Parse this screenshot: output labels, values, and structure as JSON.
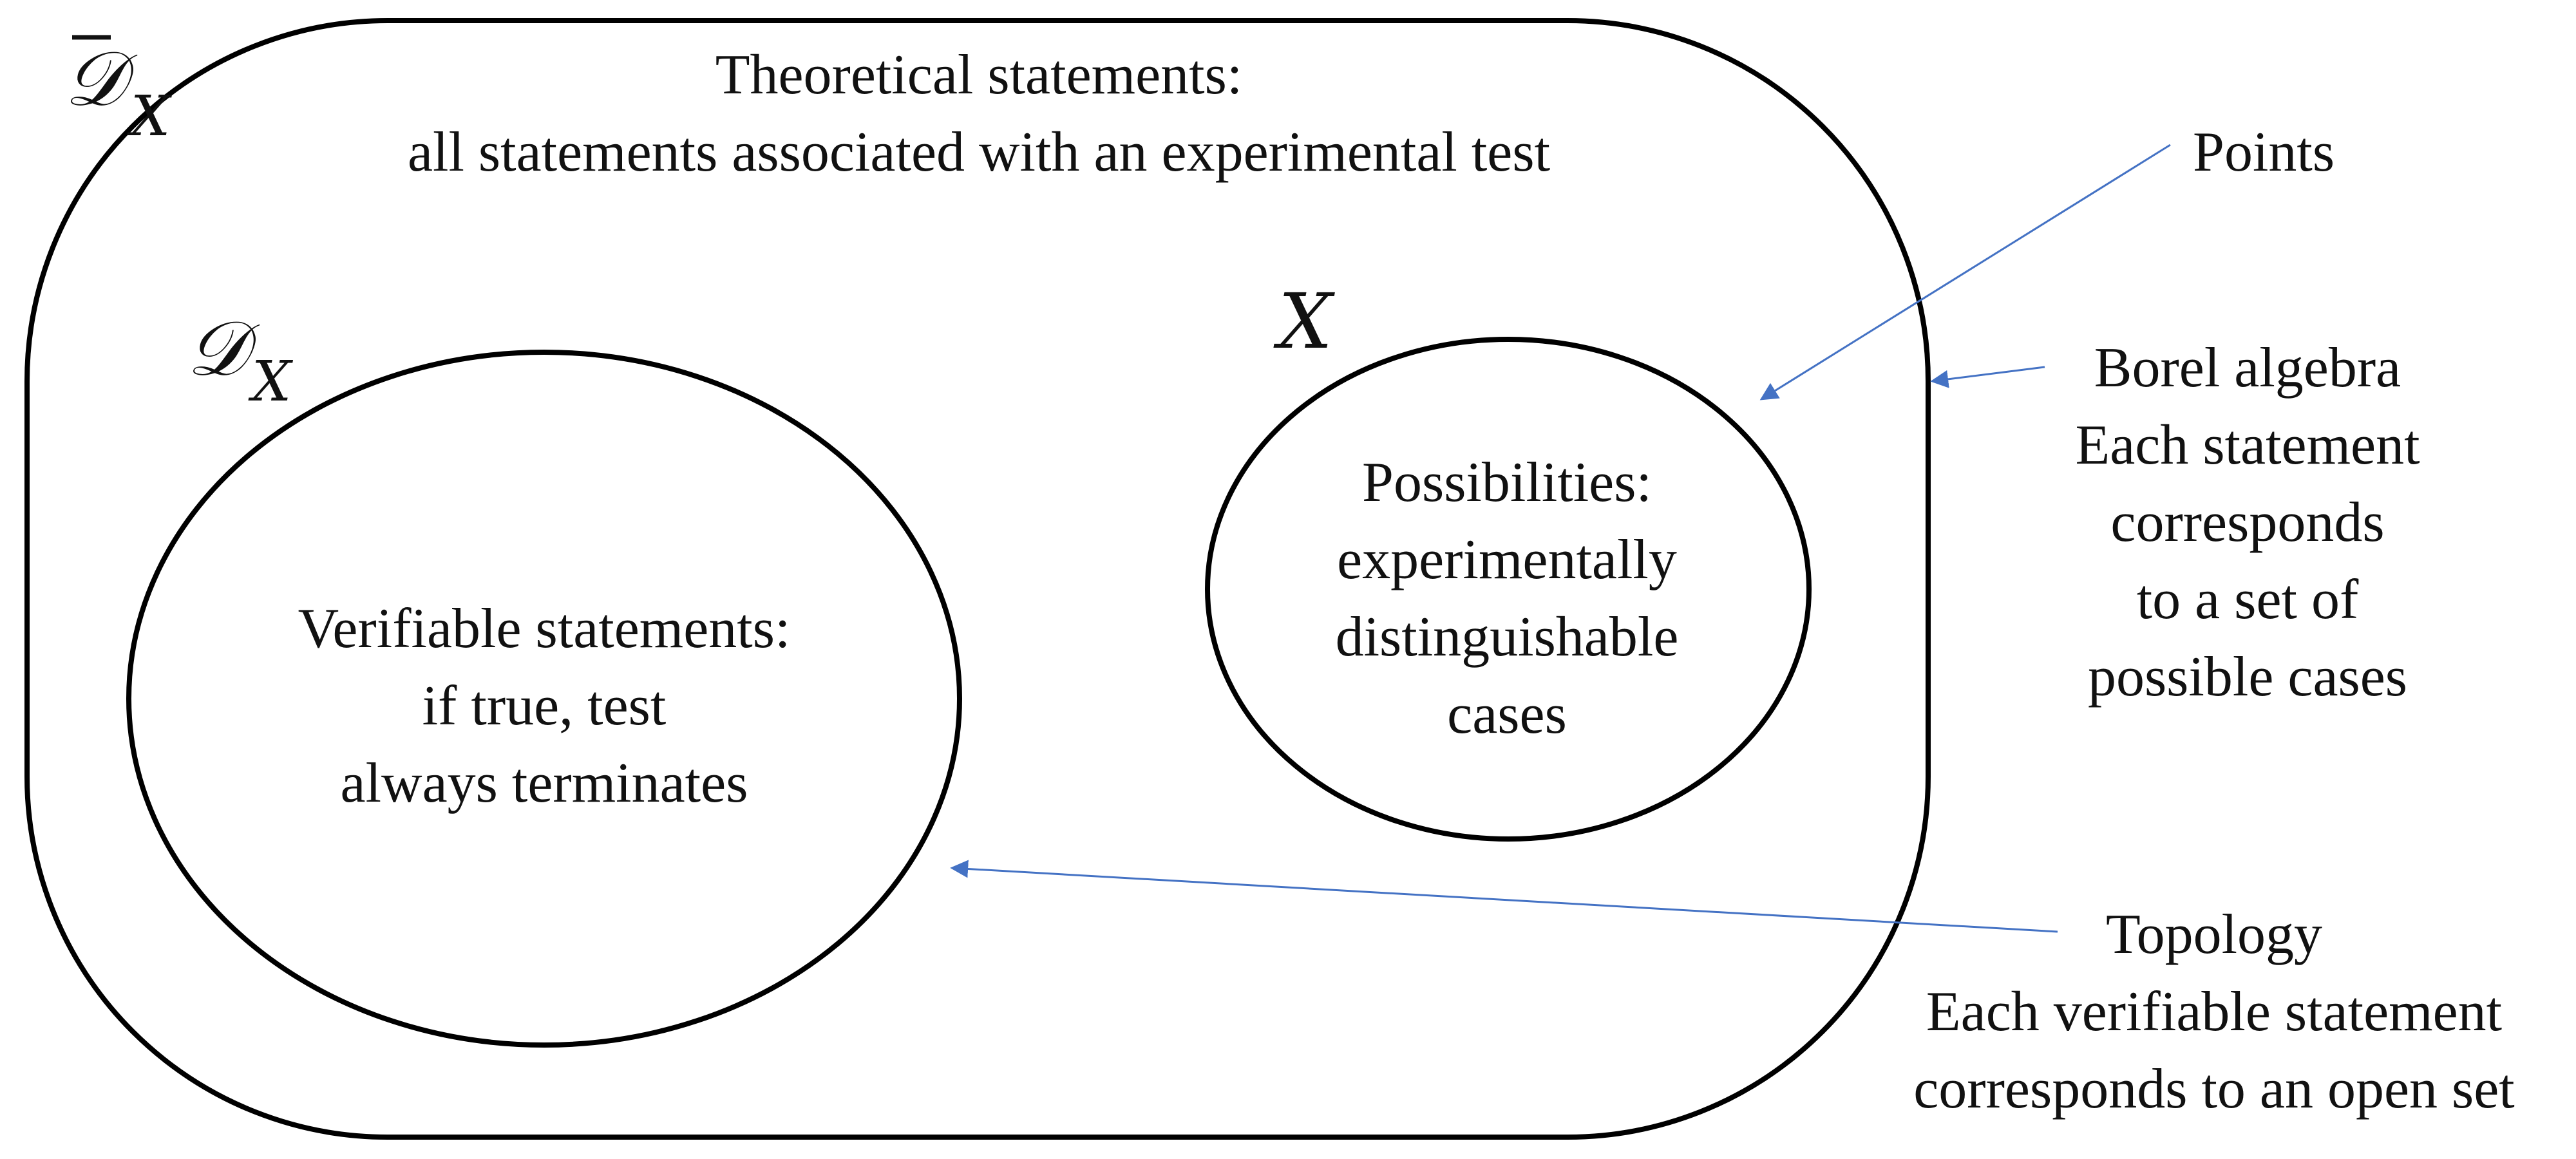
{
  "regions": {
    "outer": {
      "symbol_letter": "𝒟",
      "symbol_subscript": "X",
      "symbol_has_overbar": true,
      "description_lines": [
        "Theoretical statements:",
        "all statements associated with an experimental test"
      ]
    },
    "verifiable": {
      "symbol_letter": "𝒟",
      "symbol_subscript": "X",
      "description_lines": [
        "Verifiable statements:",
        "if true, test",
        "always terminates"
      ]
    },
    "possibilities": {
      "symbol": "X",
      "description_lines": [
        "Possibilities:",
        "experimentally",
        "distinguishable",
        "cases"
      ]
    }
  },
  "annotations": {
    "points": {
      "lines": [
        "Points"
      ]
    },
    "borel": {
      "lines": [
        "Borel algebra",
        "Each statement",
        "corresponds",
        "to a set of",
        "possible cases"
      ]
    },
    "topology": {
      "lines": [
        "Topology",
        "Each verifiable statement",
        "corresponds to an open set"
      ]
    }
  },
  "colors": {
    "arrow": "#4472c4",
    "outline": "#000000",
    "text": "#111111"
  }
}
